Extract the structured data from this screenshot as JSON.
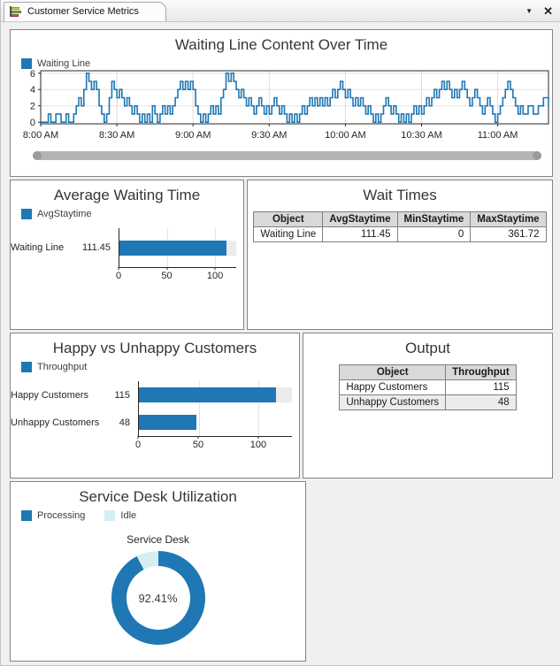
{
  "window": {
    "tab_title": "Customer Service Metrics",
    "chevron_glyph": "▼",
    "close_glyph": "✕",
    "accent_color": "#1F77B4"
  },
  "chart_data": [
    {
      "type": "line",
      "subtype": "stairs",
      "title": "Waiting Line Content Over Time",
      "legend": [
        {
          "label": "Waiting Line",
          "color": "#1F77B4"
        }
      ],
      "xlim": [
        0,
        200
      ],
      "ylim": [
        -0.2,
        6.3
      ],
      "yticks": [
        0,
        2,
        4,
        6
      ],
      "xticks": [
        0,
        30,
        60,
        90,
        120,
        150,
        180
      ],
      "xtick_labels": [
        "8:00 AM",
        "8:30 AM",
        "9:00 AM",
        "9:30 AM",
        "10:00 AM",
        "10:30 AM",
        "11:00 AM"
      ],
      "grid": true,
      "x_unit": "minutes after 8:00 AM",
      "series": [
        {
          "name": "Waiting Line",
          "color": "#1F77B4",
          "points": [
            [
              0,
              0
            ],
            [
              3,
              1
            ],
            [
              4,
              0
            ],
            [
              6,
              1
            ],
            [
              8,
              0
            ],
            [
              10,
              1
            ],
            [
              11,
              0
            ],
            [
              13,
              1
            ],
            [
              14,
              2
            ],
            [
              15,
              3
            ],
            [
              16,
              2
            ],
            [
              17,
              4
            ],
            [
              18,
              6
            ],
            [
              19,
              5
            ],
            [
              20,
              4
            ],
            [
              21,
              5
            ],
            [
              22,
              4
            ],
            [
              23,
              2
            ],
            [
              24,
              1
            ],
            [
              25,
              0
            ],
            [
              26,
              1
            ],
            [
              27,
              3
            ],
            [
              28,
              5
            ],
            [
              29,
              4
            ],
            [
              30,
              3
            ],
            [
              31,
              4
            ],
            [
              32,
              3
            ],
            [
              33,
              2
            ],
            [
              34,
              3
            ],
            [
              35,
              2
            ],
            [
              36,
              1
            ],
            [
              37,
              2
            ],
            [
              38,
              1
            ],
            [
              39,
              0
            ],
            [
              40,
              1
            ],
            [
              41,
              0
            ],
            [
              42,
              1
            ],
            [
              43,
              0
            ],
            [
              44,
              2
            ],
            [
              45,
              1
            ],
            [
              46,
              0
            ],
            [
              47,
              1
            ],
            [
              48,
              2
            ],
            [
              49,
              1
            ],
            [
              50,
              2
            ],
            [
              51,
              1
            ],
            [
              52,
              2
            ],
            [
              53,
              3
            ],
            [
              54,
              4
            ],
            [
              55,
              5
            ],
            [
              56,
              4
            ],
            [
              57,
              5
            ],
            [
              58,
              4
            ],
            [
              59,
              5
            ],
            [
              60,
              4
            ],
            [
              61,
              2
            ],
            [
              62,
              1
            ],
            [
              63,
              0
            ],
            [
              64,
              1
            ],
            [
              65,
              0
            ],
            [
              66,
              1
            ],
            [
              67,
              2
            ],
            [
              68,
              1
            ],
            [
              69,
              2
            ],
            [
              70,
              1
            ],
            [
              71,
              3
            ],
            [
              72,
              4
            ],
            [
              73,
              6
            ],
            [
              74,
              5
            ],
            [
              75,
              6
            ],
            [
              76,
              5
            ],
            [
              77,
              4
            ],
            [
              78,
              3
            ],
            [
              79,
              4
            ],
            [
              80,
              3
            ],
            [
              81,
              2
            ],
            [
              82,
              3
            ],
            [
              83,
              2
            ],
            [
              84,
              1
            ],
            [
              85,
              2
            ],
            [
              86,
              3
            ],
            [
              87,
              2
            ],
            [
              88,
              1
            ],
            [
              89,
              2
            ],
            [
              90,
              1
            ],
            [
              91,
              2
            ],
            [
              92,
              3
            ],
            [
              93,
              2
            ],
            [
              94,
              1
            ],
            [
              95,
              2
            ],
            [
              96,
              1
            ],
            [
              97,
              0
            ],
            [
              98,
              1
            ],
            [
              99,
              0
            ],
            [
              100,
              1
            ],
            [
              101,
              0
            ],
            [
              102,
              1
            ],
            [
              103,
              2
            ],
            [
              104,
              1
            ],
            [
              105,
              2
            ],
            [
              106,
              3
            ],
            [
              107,
              2
            ],
            [
              108,
              3
            ],
            [
              109,
              2
            ],
            [
              110,
              3
            ],
            [
              111,
              2
            ],
            [
              112,
              3
            ],
            [
              113,
              2
            ],
            [
              114,
              3
            ],
            [
              115,
              4
            ],
            [
              116,
              3
            ],
            [
              117,
              4
            ],
            [
              118,
              5
            ],
            [
              119,
              4
            ],
            [
              120,
              3
            ],
            [
              121,
              4
            ],
            [
              122,
              3
            ],
            [
              123,
              2
            ],
            [
              124,
              3
            ],
            [
              125,
              2
            ],
            [
              126,
              3
            ],
            [
              127,
              2
            ],
            [
              128,
              1
            ],
            [
              129,
              2
            ],
            [
              130,
              1
            ],
            [
              131,
              0
            ],
            [
              132,
              1
            ],
            [
              133,
              0
            ],
            [
              134,
              1
            ],
            [
              135,
              2
            ],
            [
              136,
              3
            ],
            [
              137,
              2
            ],
            [
              138,
              1
            ],
            [
              139,
              2
            ],
            [
              140,
              1
            ],
            [
              141,
              0
            ],
            [
              142,
              1
            ],
            [
              143,
              0
            ],
            [
              144,
              1
            ],
            [
              145,
              0
            ],
            [
              146,
              1
            ],
            [
              147,
              2
            ],
            [
              148,
              1
            ],
            [
              149,
              2
            ],
            [
              150,
              1
            ],
            [
              151,
              2
            ],
            [
              152,
              3
            ],
            [
              153,
              2
            ],
            [
              154,
              3
            ],
            [
              155,
              4
            ],
            [
              156,
              3
            ],
            [
              157,
              4
            ],
            [
              158,
              5
            ],
            [
              159,
              4
            ],
            [
              160,
              5
            ],
            [
              161,
              4
            ],
            [
              162,
              3
            ],
            [
              163,
              4
            ],
            [
              164,
              3
            ],
            [
              165,
              4
            ],
            [
              166,
              5
            ],
            [
              167,
              4
            ],
            [
              168,
              3
            ],
            [
              169,
              2
            ],
            [
              170,
              3
            ],
            [
              171,
              4
            ],
            [
              172,
              3
            ],
            [
              173,
              2
            ],
            [
              174,
              1
            ],
            [
              175,
              2
            ],
            [
              176,
              3
            ],
            [
              177,
              2
            ],
            [
              178,
              1
            ],
            [
              179,
              0
            ],
            [
              180,
              1
            ],
            [
              181,
              2
            ],
            [
              182,
              3
            ],
            [
              183,
              4
            ],
            [
              184,
              5
            ],
            [
              185,
              4
            ],
            [
              186,
              3
            ],
            [
              187,
              2
            ],
            [
              188,
              1
            ],
            [
              189,
              2
            ],
            [
              190,
              1
            ],
            [
              192,
              2
            ],
            [
              194,
              1
            ],
            [
              196,
              2
            ],
            [
              198,
              3
            ],
            [
              200,
              2
            ]
          ]
        }
      ]
    },
    {
      "type": "bar",
      "orientation": "horizontal",
      "title": "Average Waiting Time",
      "legend": [
        {
          "label": "AvgStaytime",
          "color": "#1F77B4"
        }
      ],
      "categories": [
        "Waiting Line"
      ],
      "values": [
        111.45
      ],
      "value_labels": [
        "111.45"
      ],
      "xticks": [
        0,
        50,
        100
      ],
      "xtick_labels": [
        "0",
        "50",
        "100"
      ],
      "xmax": 122
    },
    {
      "type": "table",
      "title": "Wait Times",
      "columns": [
        "Object",
        "AvgStaytime",
        "MinStaytime",
        "MaxStaytime"
      ],
      "rows": [
        [
          "Waiting Line",
          "111.45",
          "0",
          "361.72"
        ]
      ]
    },
    {
      "type": "bar",
      "orientation": "horizontal",
      "title": "Happy vs Unhappy Customers",
      "legend": [
        {
          "label": "Throughput",
          "color": "#1F77B4"
        }
      ],
      "categories": [
        "Happy Customers",
        "Unhappy Customers"
      ],
      "values": [
        115,
        48
      ],
      "value_labels": [
        "115",
        "48"
      ],
      "xticks": [
        0,
        50,
        100
      ],
      "xtick_labels": [
        "0",
        "50",
        "100"
      ],
      "xmax": 128
    },
    {
      "type": "table",
      "title": "Output",
      "columns": [
        "Object",
        "Throughput"
      ],
      "rows": [
        [
          "Happy Customers",
          "115"
        ],
        [
          "Unhappy Customers",
          "48"
        ]
      ]
    },
    {
      "type": "pie",
      "subtype": "donut",
      "title": "Service Desk Utilization",
      "subtitle": "Service Desk",
      "legend": [
        {
          "label": "Processing",
          "color": "#1F77B4"
        },
        {
          "label": "Idle",
          "color": "#D5EEF3"
        }
      ],
      "slices": [
        {
          "name": "Processing",
          "value": 92.41
        },
        {
          "name": "Idle",
          "value": 7.59
        }
      ],
      "center_label": "92.41%"
    }
  ]
}
